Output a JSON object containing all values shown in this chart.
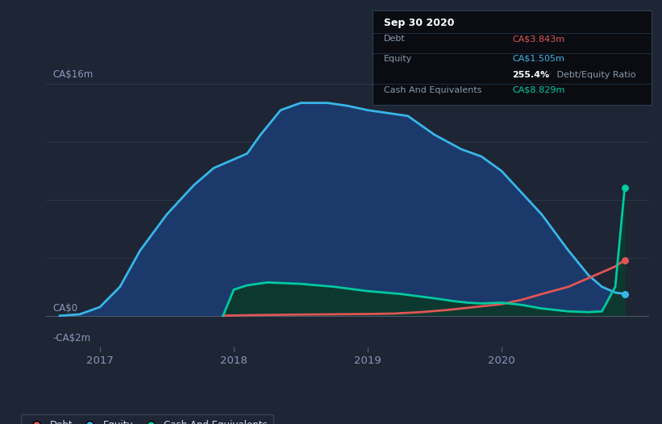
{
  "bg_color": "#1e2535",
  "plot_bg_color": "#1e2535",
  "grid_color": "#2c3a50",
  "title_box": {
    "date": "Sep 30 2020",
    "debt_label": "Debt",
    "debt_value": "CA$3.843m",
    "equity_label": "Equity",
    "equity_value": "CA$1.505m",
    "ratio": "255.4%",
    "ratio_label": " Debt/Equity Ratio",
    "cash_label": "Cash And Equivalents",
    "cash_value": "CA$8.829m"
  },
  "ylabel_top": "CA$16m",
  "ylabel_zero": "CA$0",
  "ylabel_neg": "-CA$2m",
  "ylim": [
    -2.5,
    18.0
  ],
  "xlim": [
    2016.6,
    2021.1
  ],
  "xticks": [
    2017,
    2018,
    2019,
    2020
  ],
  "debt_color": "#e05555",
  "equity_color": "#38b6e8",
  "equity_fill_color": "#1b3a6b",
  "cash_color": "#00c9a0",
  "cash_fill_color": "#0d3830",
  "legend_items": [
    "Debt",
    "Equity",
    "Cash And Equivalents"
  ],
  "equity_x": [
    2016.7,
    2016.85,
    2017.0,
    2017.15,
    2017.3,
    2017.5,
    2017.7,
    2017.85,
    2018.0,
    2018.1,
    2018.2,
    2018.35,
    2018.5,
    2018.7,
    2018.85,
    2019.0,
    2019.15,
    2019.3,
    2019.5,
    2019.7,
    2019.85,
    2020.0,
    2020.15,
    2020.3,
    2020.5,
    2020.65,
    2020.75,
    2020.85,
    2020.92
  ],
  "equity_y": [
    0.0,
    0.1,
    0.6,
    2.0,
    4.5,
    7.0,
    9.0,
    10.2,
    10.8,
    11.2,
    12.5,
    14.2,
    14.7,
    14.7,
    14.5,
    14.2,
    14.0,
    13.8,
    12.5,
    11.5,
    11.0,
    10.0,
    8.5,
    7.0,
    4.5,
    2.8,
    2.0,
    1.6,
    1.505
  ],
  "debt_x": [
    2017.92,
    2018.0,
    2018.2,
    2018.5,
    2018.75,
    2019.0,
    2019.2,
    2019.4,
    2019.6,
    2019.75,
    2019.85,
    2020.0,
    2020.15,
    2020.3,
    2020.5,
    2020.65,
    2020.75,
    2020.85,
    2020.92
  ],
  "debt_y": [
    0.0,
    0.02,
    0.05,
    0.08,
    0.1,
    0.12,
    0.15,
    0.25,
    0.4,
    0.55,
    0.65,
    0.8,
    1.1,
    1.5,
    2.0,
    2.6,
    3.0,
    3.4,
    3.843
  ],
  "cash_x": [
    2017.92,
    2018.0,
    2018.1,
    2018.25,
    2018.5,
    2018.75,
    2019.0,
    2019.25,
    2019.5,
    2019.65,
    2019.75,
    2019.85,
    2020.0,
    2020.15,
    2020.3,
    2020.5,
    2020.65,
    2020.75,
    2020.85,
    2020.92
  ],
  "cash_y": [
    0.0,
    1.8,
    2.1,
    2.3,
    2.2,
    2.0,
    1.7,
    1.5,
    1.2,
    1.0,
    0.9,
    0.85,
    0.9,
    0.75,
    0.5,
    0.3,
    0.25,
    0.3,
    2.0,
    8.829
  ]
}
